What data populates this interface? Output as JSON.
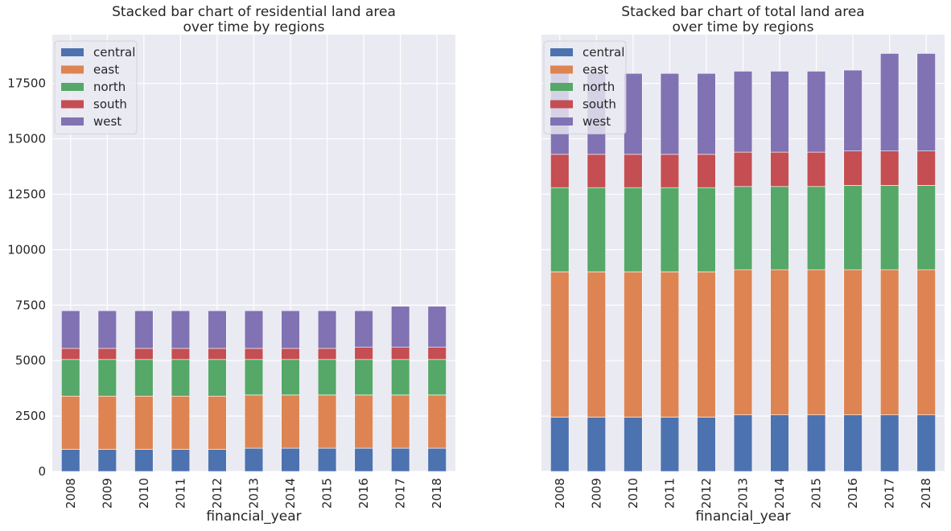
{
  "chart_data": [
    {
      "type": "bar",
      "stacked": true,
      "title_lines": [
        "Stacked bar chart of residential land area",
        "over time by regions"
      ],
      "xlabel": "financial_year",
      "ylabel": "",
      "ylim": [
        0,
        19700
      ],
      "yticks": [
        0,
        2500,
        5000,
        7500,
        10000,
        12500,
        15000,
        17500
      ],
      "grid": true,
      "legend_position": "top-left",
      "categories": [
        "2008",
        "2009",
        "2010",
        "2011",
        "2012",
        "2013",
        "2014",
        "2015",
        "2016",
        "2017",
        "2018"
      ],
      "series": [
        {
          "name": "central",
          "color": "#4c72b0",
          "values": [
            1000,
            1000,
            1000,
            1000,
            1000,
            1050,
            1050,
            1050,
            1050,
            1050,
            1050
          ]
        },
        {
          "name": "east",
          "color": "#dd8452",
          "values": [
            2400,
            2400,
            2400,
            2400,
            2400,
            2400,
            2400,
            2400,
            2400,
            2400,
            2400
          ]
        },
        {
          "name": "north",
          "color": "#55a868",
          "values": [
            1650,
            1650,
            1650,
            1650,
            1650,
            1600,
            1600,
            1600,
            1600,
            1600,
            1600
          ]
        },
        {
          "name": "south",
          "color": "#c44e52",
          "values": [
            500,
            500,
            500,
            500,
            500,
            500,
            500,
            500,
            550,
            550,
            550
          ]
        },
        {
          "name": "west",
          "color": "#8172b3",
          "values": [
            1700,
            1700,
            1700,
            1700,
            1700,
            1700,
            1700,
            1700,
            1650,
            1850,
            1850
          ]
        }
      ]
    },
    {
      "type": "bar",
      "stacked": true,
      "title_lines": [
        "Stacked bar chart of total land area",
        "over time by regions"
      ],
      "xlabel": "financial_year",
      "ylabel": "",
      "ylim": [
        0,
        19700
      ],
      "yticks": [
        0,
        2500,
        5000,
        7500,
        10000,
        12500,
        15000,
        17500
      ],
      "show_ytick_labels": false,
      "grid": true,
      "legend_position": "top-left",
      "categories": [
        "2008",
        "2009",
        "2010",
        "2011",
        "2012",
        "2013",
        "2014",
        "2015",
        "2016",
        "2017",
        "2018"
      ],
      "series": [
        {
          "name": "central",
          "color": "#4c72b0",
          "values": [
            2450,
            2450,
            2450,
            2450,
            2450,
            2550,
            2550,
            2550,
            2550,
            2550,
            2550
          ]
        },
        {
          "name": "east",
          "color": "#dd8452",
          "values": [
            6550,
            6550,
            6550,
            6550,
            6550,
            6550,
            6550,
            6550,
            6550,
            6550,
            6550
          ]
        },
        {
          "name": "north",
          "color": "#55a868",
          "values": [
            3800,
            3800,
            3800,
            3800,
            3800,
            3750,
            3750,
            3750,
            3800,
            3800,
            3800
          ]
        },
        {
          "name": "south",
          "color": "#c44e52",
          "values": [
            1500,
            1500,
            1500,
            1500,
            1500,
            1550,
            1550,
            1550,
            1550,
            1550,
            1550
          ]
        },
        {
          "name": "west",
          "color": "#8172b3",
          "values": [
            3650,
            3650,
            3650,
            3650,
            3650,
            3650,
            3650,
            3650,
            3650,
            4400,
            4400
          ]
        }
      ]
    }
  ]
}
